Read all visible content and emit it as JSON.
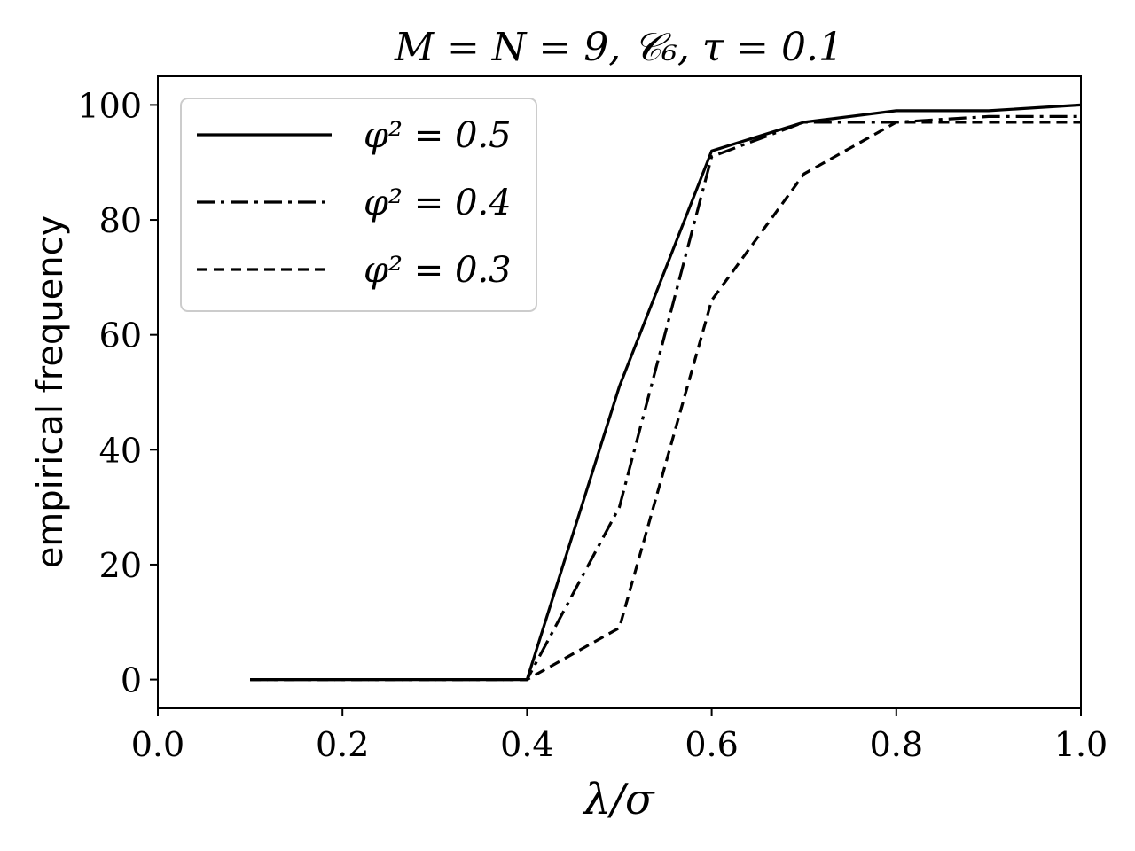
{
  "chart_data": {
    "type": "line",
    "title": "M = N = 9,  𝒞₆,  τ = 0.1",
    "xlabel": "λ/σ",
    "ylabel": "empirical frequency",
    "xlim": [
      0.0,
      1.0
    ],
    "ylim": [
      -5,
      105
    ],
    "xticks": [
      0.0,
      0.2,
      0.4,
      0.6,
      0.8,
      1.0
    ],
    "xtick_labels": [
      "0.0",
      "0.2",
      "0.4",
      "0.6",
      "0.8",
      "1.0"
    ],
    "yticks": [
      0,
      20,
      40,
      60,
      80,
      100
    ],
    "ytick_labels": [
      "0",
      "20",
      "40",
      "60",
      "80",
      "100"
    ],
    "grid": false,
    "legend_position": "top-left",
    "x": [
      0.1,
      0.2,
      0.3,
      0.4,
      0.5,
      0.6,
      0.7,
      0.8,
      0.9,
      1.0
    ],
    "series": [
      {
        "name": "φ² = 0.5",
        "style": "solid",
        "values": [
          0,
          0,
          0,
          0,
          51,
          92,
          97,
          99,
          99,
          100
        ]
      },
      {
        "name": "φ² = 0.4",
        "style": "dashdot",
        "values": [
          0,
          0,
          0,
          0,
          30,
          91,
          97,
          97,
          98,
          98
        ]
      },
      {
        "name": "φ² = 0.3",
        "style": "dashed",
        "values": [
          0,
          0,
          0,
          0,
          9,
          66,
          88,
          97,
          97,
          97
        ]
      }
    ],
    "line_color": "#000000"
  }
}
